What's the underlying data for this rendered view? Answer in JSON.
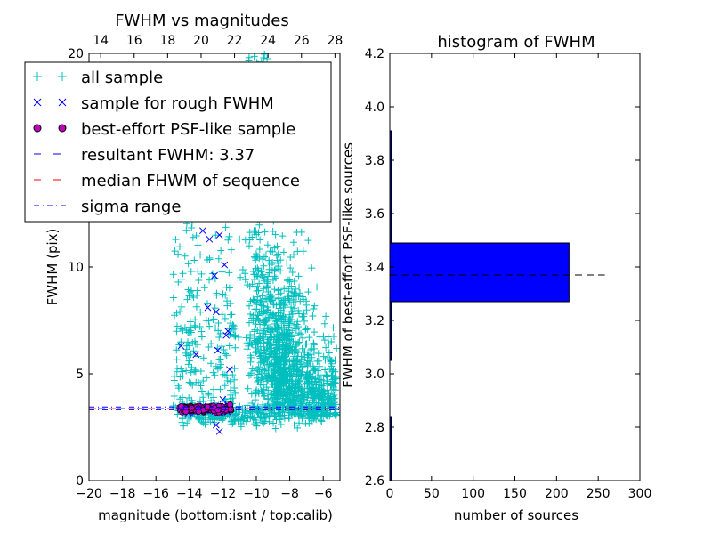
{
  "chart_data": [
    {
      "type": "scatter",
      "title": "FWHM vs magnitudes",
      "xlabel": "magnitude (bottom:isnt / top:calib)",
      "ylabel": "FWHM (pix)",
      "xlim": [
        -20,
        -5
      ],
      "ylim": [
        0,
        20
      ],
      "x_ticks": [
        -20,
        -18,
        -16,
        -14,
        -12,
        -10,
        -8,
        -6
      ],
      "x_tick_labels": [
        "−20",
        "−18",
        "−16",
        "−14",
        "−12",
        "−10",
        "−8",
        "−6"
      ],
      "y_ticks": [
        0,
        5,
        10
      ],
      "y_tick_labels": [
        "0",
        "5",
        "10"
      ],
      "top_axis": {
        "xlim": [
          13.3,
          28.3
        ],
        "ticks": [
          14,
          16,
          18,
          20,
          22,
          24,
          26,
          28
        ],
        "tick_labels": [
          "14",
          "16",
          "18",
          "20",
          "22",
          "24",
          "26",
          "28"
        ],
        "edge_label": "20"
      },
      "series": [
        {
          "name": "all sample",
          "marker": "+",
          "color": "#00bfbf"
        },
        {
          "name": "sample for rough FWHM",
          "marker": "x",
          "color": "#0000ff"
        },
        {
          "name": "best-effort PSF-like sample",
          "marker": "o",
          "color": "#bf00bf"
        },
        {
          "name": "resultant FWHM: 3.37",
          "style": "dashed",
          "color": "#0000ff",
          "y": 3.37
        },
        {
          "name": "median FHWM of sequence",
          "style": "dashed",
          "color": "#ff0000",
          "y": 3.37
        },
        {
          "name": "sigma range",
          "style": "dashdot",
          "color": "#0000ff",
          "y": [
            3.32,
            3.45
          ]
        }
      ],
      "legend_position": "upper-left",
      "grid": false
    },
    {
      "type": "bar",
      "orientation": "horizontal",
      "title": "histogram of FWHM",
      "xlabel": "number of sources",
      "ylabel": "FWHM of best-effort PSF-like sources",
      "xlim": [
        0,
        300
      ],
      "ylim": [
        2.6,
        4.2
      ],
      "x_ticks": [
        0,
        50,
        100,
        150,
        200,
        250,
        300
      ],
      "y_ticks": [
        2.6,
        2.8,
        3.0,
        3.2,
        3.4,
        3.6,
        3.8,
        4.0,
        4.2
      ],
      "y_tick_labels": [
        "2.6",
        "2.8",
        "3.0",
        "3.2",
        "3.4",
        "3.6",
        "3.8",
        "4.0",
        "4.2"
      ],
      "bars": [
        {
          "y0": 2.6,
          "y1": 2.84,
          "value": 1
        },
        {
          "y0": 3.05,
          "y1": 3.27,
          "value": 1
        },
        {
          "y0": 3.27,
          "y1": 3.49,
          "value": 215
        },
        {
          "y0": 3.49,
          "y1": 3.91,
          "value": 1
        }
      ],
      "bar_color": "#0000ff",
      "median_line": {
        "y": 3.37,
        "x_range": [
          0,
          258
        ],
        "style": "dashed",
        "color": "#000000"
      }
    }
  ]
}
